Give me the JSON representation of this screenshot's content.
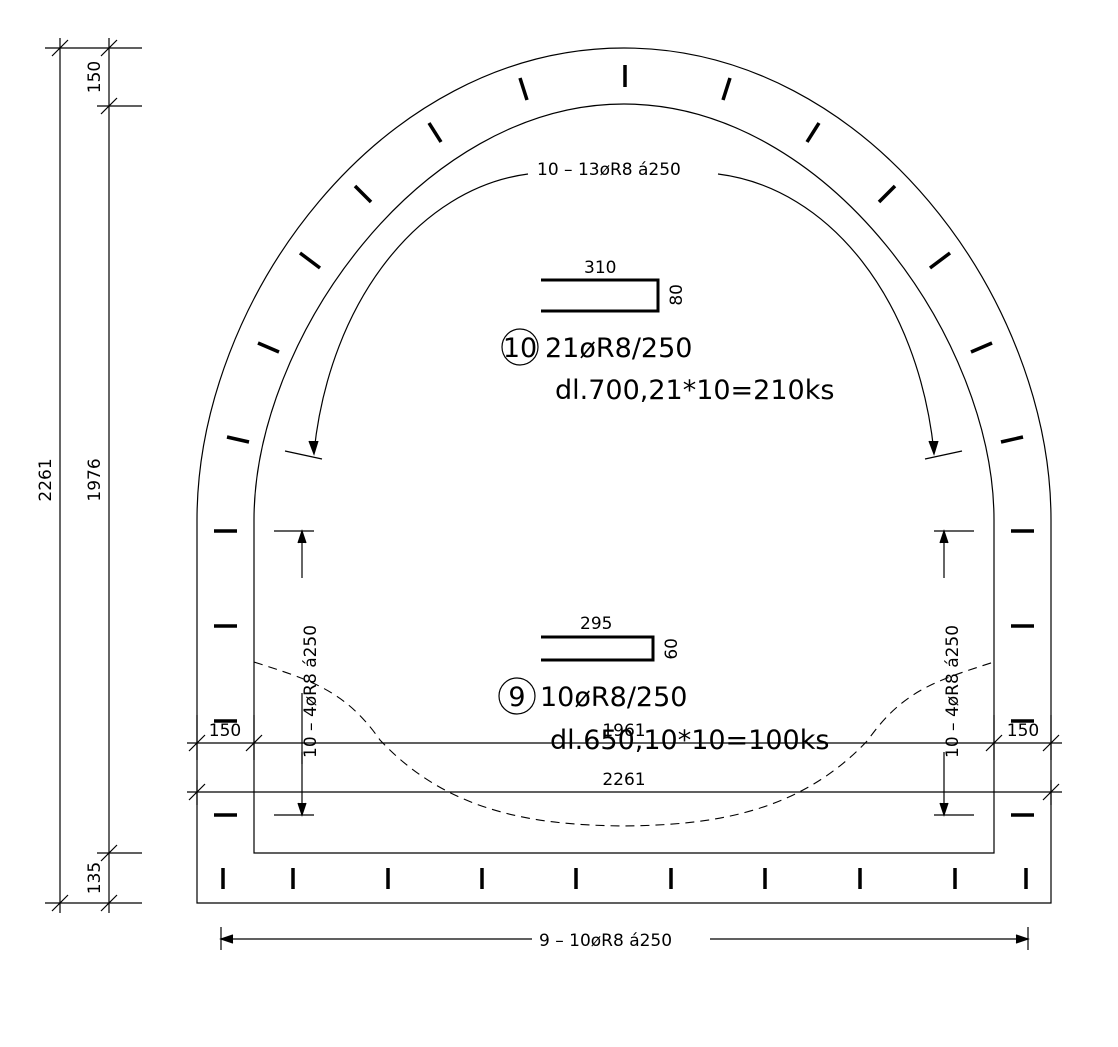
{
  "dimensions": {
    "left_top": "150",
    "left_inner": "1976",
    "left_total": "2261",
    "left_bottom": "135",
    "bottom_left": "150",
    "bottom_inner": "1961",
    "bottom_right": "150",
    "bottom_total": "2261"
  },
  "rebar_labels": {
    "arch_dist": "10 – 13øR8 á250",
    "wall_dist_left": "10 – 4øR8 á250",
    "wall_dist_right": "10 – 4øR8 á250",
    "bottom_dist": "9 – 10øR8 á250"
  },
  "bar10": {
    "number": "10",
    "shape_length": "310",
    "shape_hook": "80",
    "count_spec": "21øR8/250",
    "length_spec": "dl.700,21*10=210ks"
  },
  "bar9": {
    "number": "9",
    "shape_length": "295",
    "shape_hook": "60",
    "count_spec": "10øR8/250",
    "length_spec": "dl.650,10*10=100ks"
  }
}
